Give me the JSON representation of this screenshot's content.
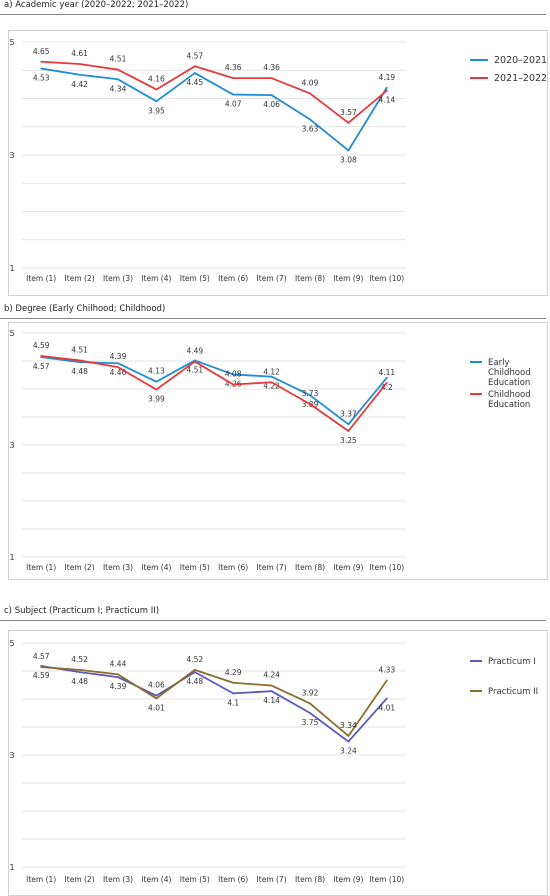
{
  "chart_data": [
    {
      "type": "line",
      "title": "a) Academic year (2020–2022; 2021–2022)",
      "categories": [
        "Item (1)",
        "Item (2)",
        "Item (3)",
        "Item (4)",
        "Item (5)",
        "Item (6)",
        "Item (7)",
        "Item (8)",
        "Item (9)",
        "Item (10)"
      ],
      "y_ticks": [
        "5",
        "3",
        "1"
      ],
      "ylim": [
        1,
        5
      ],
      "grid": true,
      "legend_position": "right",
      "series": [
        {
          "name": "2020–2021",
          "color": "#1f8dd6",
          "values": [
            4.53,
            4.42,
            4.34,
            3.95,
            4.45,
            4.07,
            4.06,
            3.63,
            3.08,
            4.19
          ],
          "labels": [
            "4.53",
            "4.42",
            "4.34",
            "3.95",
            "4.45",
            "4.07",
            "4.06",
            "3.63",
            "3.08",
            "4.19"
          ]
        },
        {
          "name": "2021–2022",
          "color": "#e8383b",
          "values": [
            4.65,
            4.61,
            4.51,
            4.16,
            4.57,
            4.36,
            4.36,
            4.09,
            3.57,
            4.14
          ],
          "labels": [
            "4.65",
            "4.61",
            "4.51",
            "4.16",
            "4.57",
            "4.36",
            "4.36",
            "4.09",
            "3.57",
            "4.14"
          ]
        }
      ]
    },
    {
      "type": "line",
      "title": "b) Degree (Early Chilhood; Childhood)",
      "categories": [
        "Item (1)",
        "Item (2)",
        "Item (3)",
        "Item (4)",
        "Item (5)",
        "Item (6)",
        "Item (7)",
        "Item (8)",
        "Item (9)",
        "Item (10)"
      ],
      "y_ticks": [
        "5",
        "3",
        "1"
      ],
      "ylim": [
        1,
        5
      ],
      "grid": true,
      "legend_position": "right",
      "series": [
        {
          "name": "Early Childhood Education",
          "color": "#1f8dd6",
          "values": [
            4.57,
            4.48,
            4.46,
            4.13,
            4.51,
            4.26,
            4.22,
            3.89,
            3.37,
            4.2
          ],
          "labels": [
            "4.57",
            "4.48",
            "4.46",
            "4.13",
            "4.51",
            "4.26",
            "4.22",
            "3.89",
            "3.37",
            "4.2"
          ]
        },
        {
          "name": "Childhood Education",
          "color": "#e8383b",
          "values": [
            4.59,
            4.51,
            4.39,
            3.99,
            4.49,
            4.08,
            4.12,
            3.73,
            3.25,
            4.11
          ],
          "labels": [
            "4.59",
            "4.51",
            "4.39",
            "3.99",
            "4.49",
            "4.08",
            "4.12",
            "3.73",
            "3.25",
            "4.11"
          ]
        }
      ]
    },
    {
      "type": "line",
      "title": "c) Subject (Practicum I; Practicum II)",
      "categories": [
        "Item (1)",
        "Item (2)",
        "Item (3)",
        "Item (4)",
        "Item (5)",
        "Item (6)",
        "Item (7)",
        "Item (8)",
        "Item (9)",
        "Item (10)"
      ],
      "y_ticks": [
        "5",
        "3",
        "1"
      ],
      "ylim": [
        1,
        5
      ],
      "grid": true,
      "legend_position": "right",
      "series": [
        {
          "name": "Practicum I",
          "color": "#5b57c2",
          "values": [
            4.59,
            4.48,
            4.39,
            4.06,
            4.48,
            4.1,
            4.14,
            3.75,
            3.24,
            4.01
          ],
          "labels": [
            "4.59",
            "4.48",
            "4.39",
            "4.06",
            "4.48",
            "4.1",
            "4.14",
            "3.75",
            "3.24",
            "4.01"
          ]
        },
        {
          "name": "Practicum II",
          "color": "#8c6d2c",
          "values": [
            4.57,
            4.52,
            4.44,
            4.01,
            4.52,
            4.29,
            4.24,
            3.92,
            3.34,
            4.33
          ],
          "labels": [
            "4.57",
            "4.52",
            "4.44",
            "4.01",
            "4.52",
            "4.29",
            "4.24",
            "3.92",
            "3.34",
            "4.33"
          ]
        }
      ]
    }
  ]
}
